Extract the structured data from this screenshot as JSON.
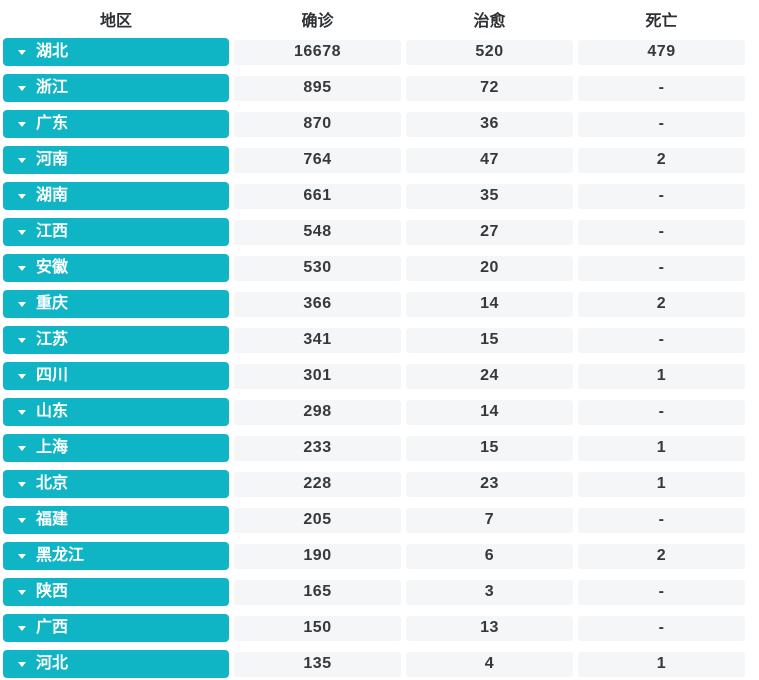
{
  "colors": {
    "accent_teal": "#10b5c5",
    "cell_background": "#f5f6f7",
    "header_text": "#2e3134",
    "cell_text": "#36393c",
    "button_text": "#ffffff"
  },
  "icons": {
    "region_caret": "chevron-down"
  },
  "header": {
    "columns": [
      "地区",
      "确诊",
      "治愈",
      "死亡"
    ]
  },
  "table": {
    "rows": [
      {
        "region": "湖北",
        "confirmed": "16678",
        "cured": "520",
        "dead": "479"
      },
      {
        "region": "浙江",
        "confirmed": "895",
        "cured": "72",
        "dead": "-"
      },
      {
        "region": "广东",
        "confirmed": "870",
        "cured": "36",
        "dead": "-"
      },
      {
        "region": "河南",
        "confirmed": "764",
        "cured": "47",
        "dead": "2"
      },
      {
        "region": "湖南",
        "confirmed": "661",
        "cured": "35",
        "dead": "-"
      },
      {
        "region": "江西",
        "confirmed": "548",
        "cured": "27",
        "dead": "-"
      },
      {
        "region": "安徽",
        "confirmed": "530",
        "cured": "20",
        "dead": "-"
      },
      {
        "region": "重庆",
        "confirmed": "366",
        "cured": "14",
        "dead": "2"
      },
      {
        "region": "江苏",
        "confirmed": "341",
        "cured": "15",
        "dead": "-"
      },
      {
        "region": "四川",
        "confirmed": "301",
        "cured": "24",
        "dead": "1"
      },
      {
        "region": "山东",
        "confirmed": "298",
        "cured": "14",
        "dead": "-"
      },
      {
        "region": "上海",
        "confirmed": "233",
        "cured": "15",
        "dead": "1"
      },
      {
        "region": "北京",
        "confirmed": "228",
        "cured": "23",
        "dead": "1"
      },
      {
        "region": "福建",
        "confirmed": "205",
        "cured": "7",
        "dead": "-"
      },
      {
        "region": "黑龙江",
        "confirmed": "190",
        "cured": "6",
        "dead": "2"
      },
      {
        "region": "陕西",
        "confirmed": "165",
        "cured": "3",
        "dead": "-"
      },
      {
        "region": "广西",
        "confirmed": "150",
        "cured": "13",
        "dead": "-"
      },
      {
        "region": "河北",
        "confirmed": "135",
        "cured": "4",
        "dead": "1"
      }
    ]
  }
}
